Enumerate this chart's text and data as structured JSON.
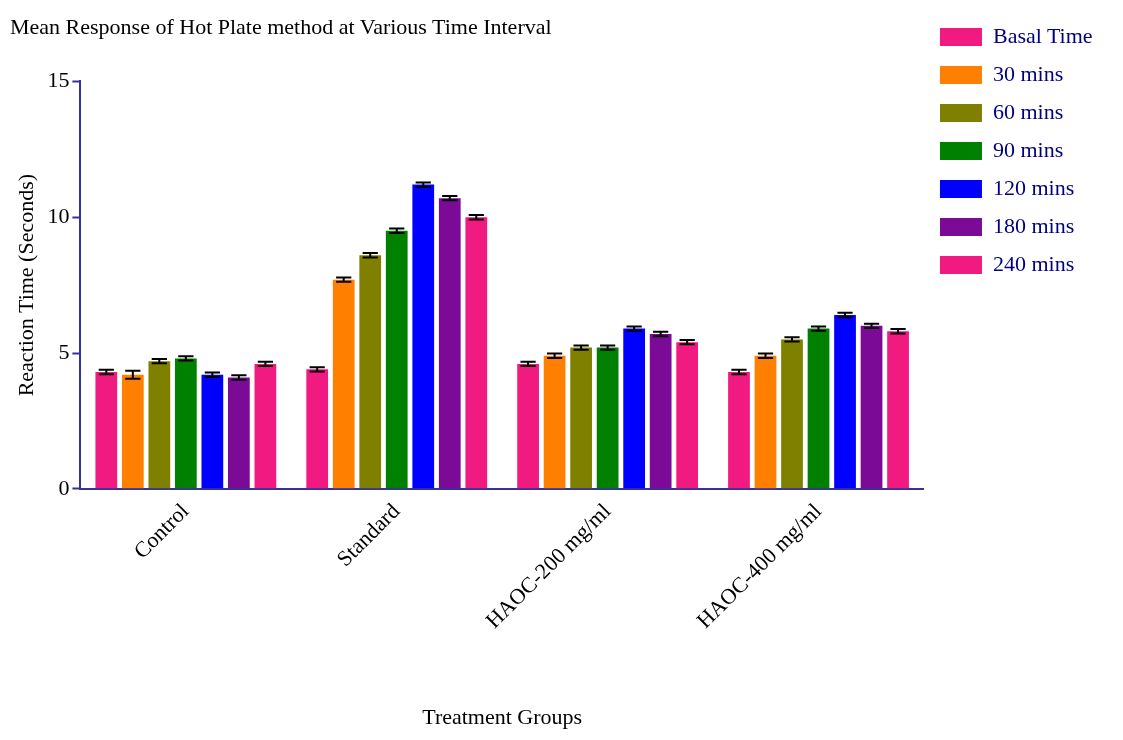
{
  "chart_data": {
    "type": "bar",
    "title": "Mean Response of Hot Plate method at Various Time Interval",
    "xlabel": "Treatment Groups",
    "ylabel": "Reaction Time (Seconds)",
    "categories": [
      "Control",
      "Standard",
      "HAOC-200 mg/ml",
      "HAOC-400 mg/ml"
    ],
    "series": [
      {
        "name": "Basal Time",
        "color": "#f01a80",
        "values": [
          4.3,
          4.4,
          4.6,
          4.3
        ],
        "errors": [
          0.08,
          0.08,
          0.08,
          0.08
        ]
      },
      {
        "name": "30 mins",
        "color": "#ff8000",
        "values": [
          4.2,
          7.7,
          4.9,
          4.9
        ],
        "errors": [
          0.15,
          0.08,
          0.08,
          0.08
        ]
      },
      {
        "name": "60 mins",
        "color": "#808000",
        "values": [
          4.7,
          8.6,
          5.2,
          5.5
        ],
        "errors": [
          0.08,
          0.08,
          0.08,
          0.08
        ]
      },
      {
        "name": "90 mins",
        "color": "#008000",
        "values": [
          4.8,
          9.5,
          5.2,
          5.9
        ],
        "errors": [
          0.08,
          0.08,
          0.08,
          0.08
        ]
      },
      {
        "name": "120 mins",
        "color": "#0000ff",
        "values": [
          4.2,
          11.2,
          5.9,
          6.4
        ],
        "errors": [
          0.08,
          0.08,
          0.08,
          0.08
        ]
      },
      {
        "name": "180 mins",
        "color": "#7b0a96",
        "values": [
          4.1,
          10.7,
          5.7,
          6.0
        ],
        "errors": [
          0.08,
          0.08,
          0.08,
          0.08
        ]
      },
      {
        "name": "240 mins",
        "color": "#f01a80",
        "values": [
          4.6,
          10.0,
          5.4,
          5.8
        ],
        "errors": [
          0.08,
          0.08,
          0.08,
          0.08
        ]
      }
    ],
    "ylim": [
      0,
      15
    ],
    "yticks": [
      0,
      5,
      10,
      15
    ],
    "grid": false,
    "legend": "right"
  }
}
